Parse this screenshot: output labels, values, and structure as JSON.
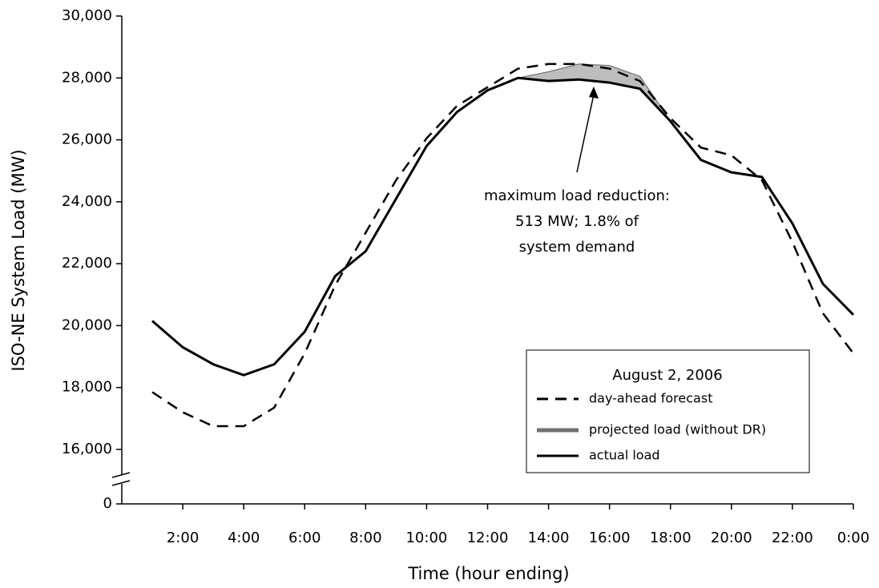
{
  "chart_data": {
    "type": "line",
    "y_label": "ISO-NE System Load (MW)",
    "x_label": "Time (hour ending)",
    "categories": [
      null,
      "2:00",
      null,
      "4:00",
      null,
      "6:00",
      null,
      "8:00",
      null,
      "10:00",
      null,
      "12:00",
      null,
      "14:00",
      null,
      "16:00",
      null,
      "18:00",
      null,
      "20:00",
      null,
      "22:00",
      null,
      "0:00"
    ],
    "series": [
      {
        "name": "day-ahead forecast",
        "color": "#000000",
        "style": "dashed",
        "values": [
          17850,
          17200,
          16750,
          16750,
          17350,
          19100,
          21300,
          23000,
          24700,
          26050,
          27100,
          27700,
          28300,
          28450,
          28450,
          28300,
          27900,
          26700,
          25750,
          25500,
          24700,
          22700,
          20400,
          19100
        ]
      },
      {
        "name": "projected load (without DR)",
        "color": "#707070",
        "fill": "#bdbdbd",
        "style": "shaded",
        "values": [
          null,
          null,
          null,
          null,
          null,
          null,
          null,
          null,
          null,
          null,
          null,
          null,
          28000,
          28200,
          28450,
          28400,
          28050,
          26600,
          null,
          null,
          null,
          null,
          null,
          null
        ]
      },
      {
        "name": "actual load",
        "color": "#000000",
        "style": "solid",
        "values": [
          20150,
          19300,
          18750,
          18400,
          18750,
          19800,
          21600,
          22400,
          24100,
          25800,
          26900,
          27600,
          28000,
          27900,
          27950,
          27850,
          27650,
          26600,
          25350,
          24950,
          24800,
          23300,
          21350,
          20350
        ]
      }
    ],
    "ylim": [
      0,
      30000
    ],
    "yticks": [
      0,
      {
        "value": 16000,
        "label": "16,000"
      },
      {
        "value": 18000,
        "label": "18,000"
      },
      {
        "value": 20000,
        "label": "20,000"
      },
      {
        "value": 22000,
        "label": "22,000"
      },
      {
        "value": 24000,
        "label": "24,000"
      },
      {
        "value": 26000,
        "label": "26,000"
      },
      {
        "value": 28000,
        "label": "28,000"
      },
      {
        "value": 30000,
        "label": "30,000"
      }
    ],
    "axis_break": true,
    "legend_title": "August 2, 2006",
    "legend_position": "lower right",
    "annotation": [
      "maximum load reduction:",
      "513 MW; 1.8% of",
      "system demand"
    ]
  }
}
